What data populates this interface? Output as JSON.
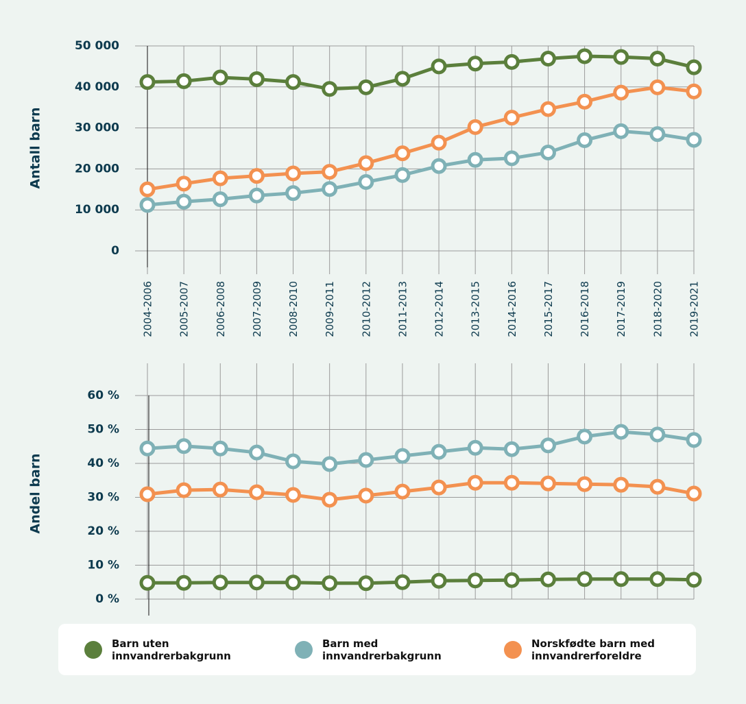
{
  "chart_data": [
    {
      "type": "line",
      "y_label": "Antall barn",
      "categories": [
        "2004-2006",
        "2005-2007",
        "2006-2008",
        "2007-2009",
        "2008-2010",
        "2009-2011",
        "2010-2012",
        "2011-2013",
        "2012-2014",
        "2013-2015",
        "2014-2016",
        "2015-2017",
        "2016-2018",
        "2017-2019",
        "2018-2020",
        "2019-2021"
      ],
      "ylim": [
        0,
        50000
      ],
      "yticks": [
        0,
        {
          "value": 10000,
          "label": "10 000"
        },
        {
          "value": 20000,
          "label": "20 000"
        },
        {
          "value": 30000,
          "label": "30 000"
        },
        {
          "value": 40000,
          "label": "40 000"
        },
        {
          "value": 50000,
          "label": "50 000"
        }
      ],
      "grid": true,
      "series": [
        {
          "name": "Barn uten innvandrerbakgrunn",
          "color": "#5b7f3c",
          "values": [
            41200,
            41400,
            42300,
            41900,
            41200,
            39500,
            39900,
            42000,
            45000,
            45700,
            46100,
            46900,
            47500,
            47300,
            46900,
            44800
          ]
        },
        {
          "name": "Barn med innvandrerbakgrunn",
          "color": "#7fb1b6",
          "values": [
            11200,
            12000,
            12600,
            13500,
            14100,
            15100,
            16800,
            18500,
            20700,
            22200,
            22600,
            24000,
            27000,
            29200,
            28500,
            27100
          ]
        },
        {
          "name": "Norskfødte barn med innvandrerforeldre",
          "color": "#f39150",
          "values": [
            15000,
            16400,
            17700,
            18300,
            18900,
            19300,
            21400,
            23800,
            26400,
            30200,
            32500,
            34600,
            36400,
            38600,
            39900,
            38900
          ]
        }
      ]
    },
    {
      "type": "line",
      "y_label": "Andel barn",
      "ylim": [
        0,
        60
      ],
      "yticks": [
        {
          "value": 0,
          "label": "0 %"
        },
        {
          "value": 10,
          "label": "10 %"
        },
        {
          "value": 20,
          "label": "20 %"
        },
        {
          "value": 30,
          "label": "30 %"
        },
        {
          "value": 40,
          "label": "40 %"
        },
        {
          "value": 50,
          "label": "50 %"
        },
        {
          "value": 60,
          "label": "60 %"
        }
      ],
      "grid": true,
      "series": [
        {
          "color": "#5b7f3c",
          "values": [
            4.8,
            4.8,
            4.9,
            4.9,
            4.9,
            4.7,
            4.7,
            5.0,
            5.4,
            5.5,
            5.6,
            5.8,
            5.9,
            5.9,
            5.9,
            5.7
          ]
        },
        {
          "color": "#7fb1b6",
          "values": [
            44.4,
            45.1,
            44.4,
            43.2,
            40.6,
            39.8,
            41.0,
            42.2,
            43.4,
            44.6,
            44.2,
            45.3,
            47.9,
            49.3,
            48.5,
            46.9
          ]
        },
        {
          "color": "#f39150",
          "values": [
            30.9,
            32.1,
            32.3,
            31.5,
            30.7,
            29.3,
            30.5,
            31.7,
            32.9,
            34.3,
            34.3,
            34.1,
            33.9,
            33.7,
            33.1,
            31.1
          ]
        }
      ]
    }
  ]
}
